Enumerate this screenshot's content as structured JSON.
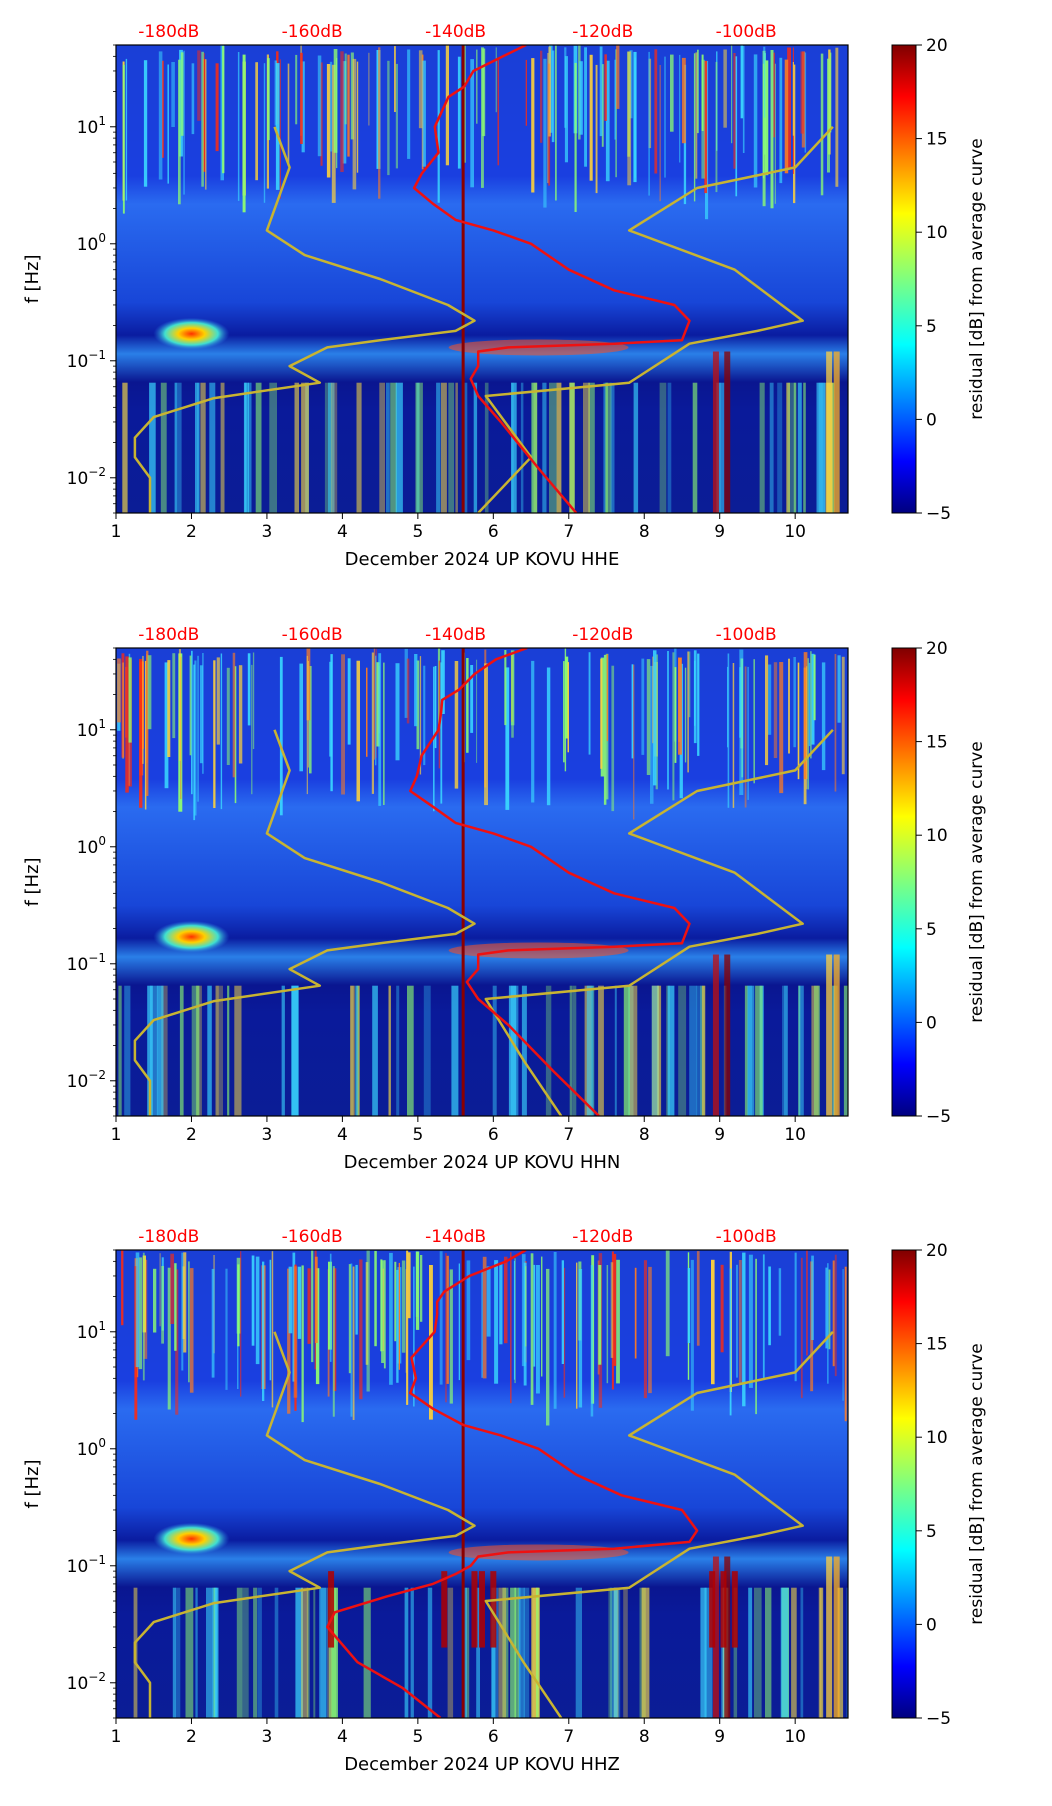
{
  "top_axis_ticks": [
    "-180dB",
    "-160dB",
    "-140dB",
    "-120dB",
    "-100dB"
  ],
  "x_ticks": [
    "1",
    "2",
    "3",
    "4",
    "5",
    "6",
    "7",
    "8",
    "9",
    "10"
  ],
  "y_ticks": [
    {
      "base": "10",
      "exp": "1"
    },
    {
      "base": "10",
      "exp": "0"
    },
    {
      "base": "10",
      "exp": "−1"
    },
    {
      "base": "10",
      "exp": "−2"
    }
  ],
  "ylabel": "f [Hz]",
  "colorbar": {
    "label": "residual [dB] from average curve",
    "ticks": [
      "20",
      "15",
      "10",
      "5",
      "0",
      "−5"
    ],
    "range": [
      -5,
      20
    ]
  },
  "colors": {
    "red_curve": "#ee1111",
    "yellow_curve": "#c8b432",
    "vline": "#8b0000",
    "top_tick_text": "#ff0000"
  },
  "chart_data": [
    {
      "type": "heatmap",
      "title": "",
      "xlabel": "December 2024 UP KOVU  HHE",
      "ylabel": "f [Hz]",
      "xlim": [
        1,
        10.7
      ],
      "ylim_hz": [
        0.005,
        50
      ],
      "top_axis_db_ticks": [
        -180,
        -160,
        -140,
        -120,
        -100
      ],
      "vline_day": 5.6,
      "red_curve": [
        [
          6.4,
          50
        ],
        [
          6.2,
          40
        ],
        [
          5.8,
          30
        ],
        [
          5.6,
          22
        ],
        [
          5.4,
          18
        ],
        [
          5.3,
          14
        ],
        [
          5.3,
          10
        ],
        [
          5.2,
          6
        ],
        [
          5.0,
          4
        ],
        [
          4.95,
          3
        ],
        [
          5.2,
          2.2
        ],
        [
          5.5,
          1.6
        ],
        [
          6.0,
          1.3
        ],
        [
          6.5,
          1.0
        ],
        [
          7.0,
          0.6
        ],
        [
          7.6,
          0.4
        ],
        [
          8.4,
          0.3
        ],
        [
          8.6,
          0.22
        ],
        [
          8.5,
          0.15
        ],
        [
          7.6,
          0.14
        ],
        [
          6.2,
          0.13
        ],
        [
          5.8,
          0.12
        ],
        [
          5.8,
          0.09
        ],
        [
          5.7,
          0.07
        ],
        [
          5.8,
          0.05
        ],
        [
          6.1,
          0.03
        ],
        [
          6.6,
          0.012
        ],
        [
          7.1,
          0.005
        ]
      ],
      "yellow_curve": [
        [
          3.1,
          10
        ],
        [
          3.3,
          4.5
        ],
        [
          3.0,
          1.3
        ],
        [
          3.5,
          0.8
        ],
        [
          4.5,
          0.5
        ],
        [
          5.4,
          0.3
        ],
        [
          5.75,
          0.22
        ],
        [
          5.5,
          0.18
        ],
        [
          4.5,
          0.15
        ],
        [
          3.8,
          0.13
        ],
        [
          3.3,
          0.09
        ],
        [
          3.7,
          0.065
        ],
        [
          2.3,
          0.048
        ],
        [
          1.5,
          0.033
        ],
        [
          1.25,
          0.022
        ],
        [
          1.25,
          0.015
        ],
        [
          1.45,
          0.01
        ],
        [
          1.45,
          0.005
        ]
      ],
      "yellow_curve_right": [
        [
          5.8,
          0.005
        ],
        [
          6.5,
          0.015
        ],
        [
          5.9,
          0.05
        ],
        [
          7.8,
          0.065
        ],
        [
          8.6,
          0.14
        ],
        [
          9.5,
          0.18
        ],
        [
          10.1,
          0.22
        ],
        [
          9.2,
          0.6
        ],
        [
          7.8,
          1.3
        ],
        [
          8.7,
          3.0
        ],
        [
          10.0,
          4.5
        ],
        [
          10.5,
          10
        ]
      ],
      "colorscale_range_db": [
        -5,
        20
      ]
    },
    {
      "type": "heatmap",
      "title": "",
      "xlabel": "December 2024 UP KOVU  HHN",
      "ylabel": "f [Hz]",
      "xlim": [
        1,
        10.7
      ],
      "ylim_hz": [
        0.005,
        50
      ],
      "top_axis_db_ticks": [
        -180,
        -160,
        -140,
        -120,
        -100
      ],
      "vline_day": 5.6,
      "red_curve": [
        [
          6.4,
          50
        ],
        [
          6.0,
          40
        ],
        [
          5.7,
          30
        ],
        [
          5.5,
          22
        ],
        [
          5.35,
          18
        ],
        [
          5.3,
          14
        ],
        [
          5.2,
          10
        ],
        [
          5.1,
          6
        ],
        [
          4.95,
          4
        ],
        [
          4.9,
          3
        ],
        [
          5.2,
          2.2
        ],
        [
          5.5,
          1.6
        ],
        [
          6.0,
          1.3
        ],
        [
          6.5,
          1.0
        ],
        [
          7.0,
          0.6
        ],
        [
          7.6,
          0.4
        ],
        [
          8.4,
          0.3
        ],
        [
          8.6,
          0.22
        ],
        [
          8.5,
          0.15
        ],
        [
          7.6,
          0.14
        ],
        [
          6.2,
          0.13
        ],
        [
          5.8,
          0.12
        ],
        [
          5.8,
          0.09
        ],
        [
          5.65,
          0.07
        ],
        [
          5.8,
          0.05
        ],
        [
          6.2,
          0.03
        ],
        [
          6.8,
          0.012
        ],
        [
          7.4,
          0.005
        ]
      ],
      "yellow_curve": [
        [
          3.1,
          10
        ],
        [
          3.3,
          4.5
        ],
        [
          3.0,
          1.3
        ],
        [
          3.5,
          0.8
        ],
        [
          4.5,
          0.5
        ],
        [
          5.4,
          0.3
        ],
        [
          5.75,
          0.22
        ],
        [
          5.5,
          0.18
        ],
        [
          4.5,
          0.15
        ],
        [
          3.8,
          0.13
        ],
        [
          3.3,
          0.09
        ],
        [
          3.7,
          0.065
        ],
        [
          2.3,
          0.048
        ],
        [
          1.5,
          0.033
        ],
        [
          1.25,
          0.022
        ],
        [
          1.25,
          0.015
        ],
        [
          1.45,
          0.01
        ],
        [
          1.45,
          0.005
        ]
      ],
      "yellow_curve_right": [
        [
          6.9,
          0.005
        ],
        [
          6.4,
          0.015
        ],
        [
          5.9,
          0.05
        ],
        [
          7.8,
          0.065
        ],
        [
          8.6,
          0.14
        ],
        [
          9.5,
          0.18
        ],
        [
          10.1,
          0.22
        ],
        [
          9.2,
          0.6
        ],
        [
          7.8,
          1.3
        ],
        [
          8.7,
          3.0
        ],
        [
          10.0,
          4.5
        ],
        [
          10.5,
          10
        ]
      ],
      "colorscale_range_db": [
        -5,
        20
      ]
    },
    {
      "type": "heatmap",
      "title": "",
      "xlabel": "December 2024 UP KOVU  HHZ",
      "ylabel": "f [Hz]",
      "xlim": [
        1,
        10.7
      ],
      "ylim_hz": [
        0.005,
        50
      ],
      "top_axis_db_ticks": [
        -180,
        -160,
        -140,
        -120,
        -100
      ],
      "vline_day": 5.6,
      "red_curve": [
        [
          6.5,
          50
        ],
        [
          6.1,
          40
        ],
        [
          5.7,
          30
        ],
        [
          5.4,
          22
        ],
        [
          5.25,
          18
        ],
        [
          5.2,
          14
        ],
        [
          5.2,
          10
        ],
        [
          5.0,
          6
        ],
        [
          4.9,
          4
        ],
        [
          4.9,
          3
        ],
        [
          5.2,
          2.2
        ],
        [
          5.6,
          1.6
        ],
        [
          6.1,
          1.3
        ],
        [
          6.6,
          1.0
        ],
        [
          7.1,
          0.6
        ],
        [
          7.7,
          0.4
        ],
        [
          8.5,
          0.3
        ],
        [
          8.7,
          0.2
        ],
        [
          8.6,
          0.16
        ],
        [
          7.6,
          0.14
        ],
        [
          6.2,
          0.13
        ],
        [
          5.8,
          0.12
        ],
        [
          5.7,
          0.1
        ],
        [
          5.5,
          0.085
        ],
        [
          5.2,
          0.07
        ],
        [
          4.6,
          0.055
        ],
        [
          3.9,
          0.04
        ],
        [
          3.8,
          0.03
        ],
        [
          4.2,
          0.015
        ],
        [
          4.8,
          0.009
        ],
        [
          5.3,
          0.005
        ]
      ],
      "yellow_curve": [
        [
          3.1,
          10
        ],
        [
          3.3,
          4.5
        ],
        [
          3.0,
          1.3
        ],
        [
          3.5,
          0.8
        ],
        [
          4.5,
          0.5
        ],
        [
          5.4,
          0.3
        ],
        [
          5.75,
          0.22
        ],
        [
          5.5,
          0.18
        ],
        [
          4.5,
          0.15
        ],
        [
          3.8,
          0.13
        ],
        [
          3.3,
          0.09
        ],
        [
          3.7,
          0.065
        ],
        [
          2.3,
          0.048
        ],
        [
          1.5,
          0.033
        ],
        [
          1.25,
          0.022
        ],
        [
          1.25,
          0.015
        ],
        [
          1.45,
          0.01
        ],
        [
          1.45,
          0.005
        ]
      ],
      "yellow_curve_right": [
        [
          6.9,
          0.005
        ],
        [
          6.4,
          0.015
        ],
        [
          5.9,
          0.05
        ],
        [
          7.8,
          0.065
        ],
        [
          8.6,
          0.14
        ],
        [
          9.5,
          0.18
        ],
        [
          10.1,
          0.22
        ],
        [
          9.2,
          0.6
        ],
        [
          7.8,
          1.3
        ],
        [
          8.7,
          3.0
        ],
        [
          10.0,
          4.5
        ],
        [
          10.5,
          10
        ]
      ],
      "colorscale_range_db": [
        -5,
        20
      ]
    }
  ]
}
